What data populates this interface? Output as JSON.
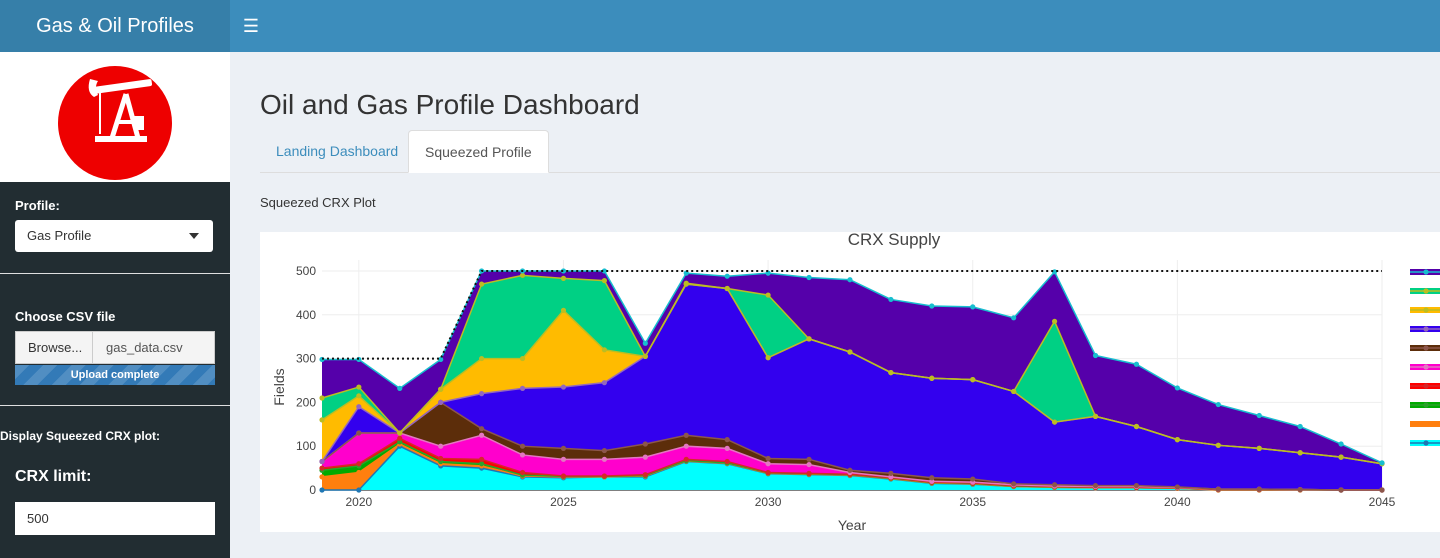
{
  "app": {
    "title": "Gas & Oil Profiles",
    "menu_icon": "hamburger-icon"
  },
  "sidebar": {
    "logo_icon": "oil-pump-icon",
    "profile_label": "Profile:",
    "profile_value": "Gas Profile",
    "csv_label": "Choose CSV file",
    "browse_label": "Browse...",
    "file_name": "gas_data.csv",
    "upload_status": "Upload complete",
    "upload_progress": 1.0,
    "display_label": "Display Squeezed CRX plot:",
    "crx_limit_label": "CRX limit:",
    "crx_limit_value": "500"
  },
  "main": {
    "title": "Oil and Gas Profile Dashboard",
    "tabs": [
      {
        "label": "Landing Dashboard",
        "active": false
      },
      {
        "label": "Squeezed Profile",
        "active": true
      }
    ],
    "plot_label": "Squeezed CRX Plot"
  },
  "chart_data": {
    "type": "area",
    "title": "CRX Supply",
    "xlabel": "Year",
    "ylabel": "Fields",
    "xlim": [
      2019.1,
      2045
    ],
    "ylim": [
      0,
      525
    ],
    "xticks": [
      2020,
      2025,
      2030,
      2035,
      2040,
      2045
    ],
    "yticks": [
      0,
      100,
      200,
      300,
      400,
      500
    ],
    "grid": true,
    "legend": "right",
    "x": [
      2019,
      2020,
      2021,
      2022,
      2023,
      2024,
      2025,
      2026,
      2027,
      2028,
      2029,
      2030,
      2031,
      2032,
      2033,
      2034,
      2035,
      2036,
      2037,
      2038,
      2039,
      2040,
      2041,
      2042,
      2043,
      2044,
      2045
    ],
    "limit_line": {
      "value": 500,
      "x": [
        2019,
        2020,
        2021,
        2022,
        2023,
        2045
      ],
      "y": [
        300,
        300,
        300,
        300,
        500,
        500
      ]
    },
    "series": [
      {
        "color": "#00ffff",
        "marker": "#1f77b4",
        "values": [
          0,
          0,
          100,
          55,
          50,
          30,
          28,
          30,
          30,
          65,
          60,
          37,
          35,
          33,
          25,
          15,
          13,
          8,
          6,
          5,
          5,
          4,
          0,
          0,
          0,
          0,
          0
        ]
      },
      {
        "color": "#ff7f0e",
        "marker": "#ff7f0e",
        "values": [
          30,
          40,
          105,
          60,
          55,
          32,
          30,
          30,
          32,
          66,
          61,
          38,
          36,
          34,
          26,
          16,
          14,
          8,
          6,
          5,
          5,
          4,
          0,
          0,
          0,
          0,
          0
        ]
      },
      {
        "color": "#00aa00",
        "marker": "#2ca02c",
        "values": [
          45,
          55,
          110,
          65,
          60,
          34,
          31,
          31,
          33,
          67,
          62,
          39,
          37,
          35,
          27,
          17,
          15,
          9,
          7,
          6,
          6,
          5,
          1,
          1,
          1,
          0,
          0
        ]
      },
      {
        "color": "#ff0000",
        "marker": "#d62728",
        "values": [
          50,
          60,
          118,
          72,
          70,
          40,
          32,
          32,
          35,
          70,
          65,
          40,
          38,
          36,
          28,
          18,
          16,
          10,
          8,
          6,
          6,
          5,
          1,
          1,
          1,
          0,
          0
        ]
      },
      {
        "color": "#ff00cc",
        "marker": "#e377c2",
        "values": [
          65,
          130,
          130,
          100,
          125,
          80,
          70,
          70,
          75,
          100,
          95,
          60,
          58,
          40,
          30,
          20,
          18,
          12,
          9,
          8,
          8,
          6,
          2,
          2,
          1,
          0,
          0
        ]
      },
      {
        "color": "#5c2d0a",
        "marker": "#8c564b",
        "values": [
          65,
          130,
          130,
          200,
          140,
          100,
          95,
          90,
          105,
          125,
          115,
          72,
          70,
          45,
          38,
          28,
          25,
          14,
          12,
          10,
          10,
          7,
          2,
          2,
          1,
          0,
          0
        ]
      },
      {
        "color": "#3300ee",
        "marker": "#9467bd",
        "values": [
          65,
          190,
          130,
          200,
          220,
          232,
          235,
          245,
          305,
          470,
          460,
          302,
          345,
          315,
          268,
          255,
          252,
          225,
          155,
          168,
          145,
          115,
          102,
          95,
          85,
          75,
          60
        ]
      },
      {
        "color": "#ffbb00",
        "marker": "#bcbd22",
        "values": [
          160,
          215,
          130,
          230,
          300,
          300,
          410,
          320,
          305,
          470,
          460,
          302,
          345,
          315,
          268,
          255,
          252,
          225,
          155,
          168,
          145,
          115,
          102,
          95,
          85,
          75,
          60
        ]
      },
      {
        "color": "#00d084",
        "marker": "#bcbd22",
        "values": [
          210,
          235,
          130,
          230,
          470,
          490,
          483,
          478,
          305,
          472,
          460,
          445,
          345,
          315,
          268,
          255,
          252,
          225,
          385,
          168,
          145,
          115,
          102,
          95,
          85,
          75,
          60
        ]
      },
      {
        "color": "#5500aa",
        "marker": "#17becf",
        "values": [
          298,
          298,
          232,
          298,
          500,
          500,
          500,
          500,
          335,
          495,
          488,
          495,
          485,
          480,
          435,
          420,
          418,
          393,
          498,
          307,
          287,
          233,
          195,
          170,
          145,
          105,
          62
        ]
      }
    ]
  }
}
